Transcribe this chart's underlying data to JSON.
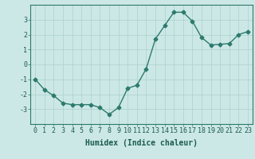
{
  "x": [
    0,
    1,
    2,
    3,
    4,
    5,
    6,
    7,
    8,
    9,
    10,
    11,
    12,
    13,
    14,
    15,
    16,
    17,
    18,
    19,
    20,
    21,
    22,
    23
  ],
  "y": [
    -1.0,
    -1.7,
    -2.1,
    -2.6,
    -2.7,
    -2.7,
    -2.7,
    -2.9,
    -3.35,
    -2.9,
    -1.6,
    -1.4,
    -0.3,
    1.7,
    2.6,
    3.5,
    3.5,
    2.9,
    1.8,
    1.3,
    1.35,
    1.4,
    2.0,
    2.2
  ],
  "xlabel": "Humidex (Indice chaleur)",
  "ylim": [
    -4.0,
    4.0
  ],
  "yticks": [
    -3,
    -2,
    -1,
    0,
    1,
    2,
    3
  ],
  "xticks": [
    0,
    1,
    2,
    3,
    4,
    5,
    6,
    7,
    8,
    9,
    10,
    11,
    12,
    13,
    14,
    15,
    16,
    17,
    18,
    19,
    20,
    21,
    22,
    23
  ],
  "line_color": "#2d7a6e",
  "marker": "D",
  "marker_size": 2.5,
  "bg_color": "#cce8e6",
  "grid_color": "#b0d4d0",
  "axis_bg": "#cce8e6",
  "xlabel_fontsize": 7,
  "tick_fontsize": 6,
  "linewidth": 1.0
}
